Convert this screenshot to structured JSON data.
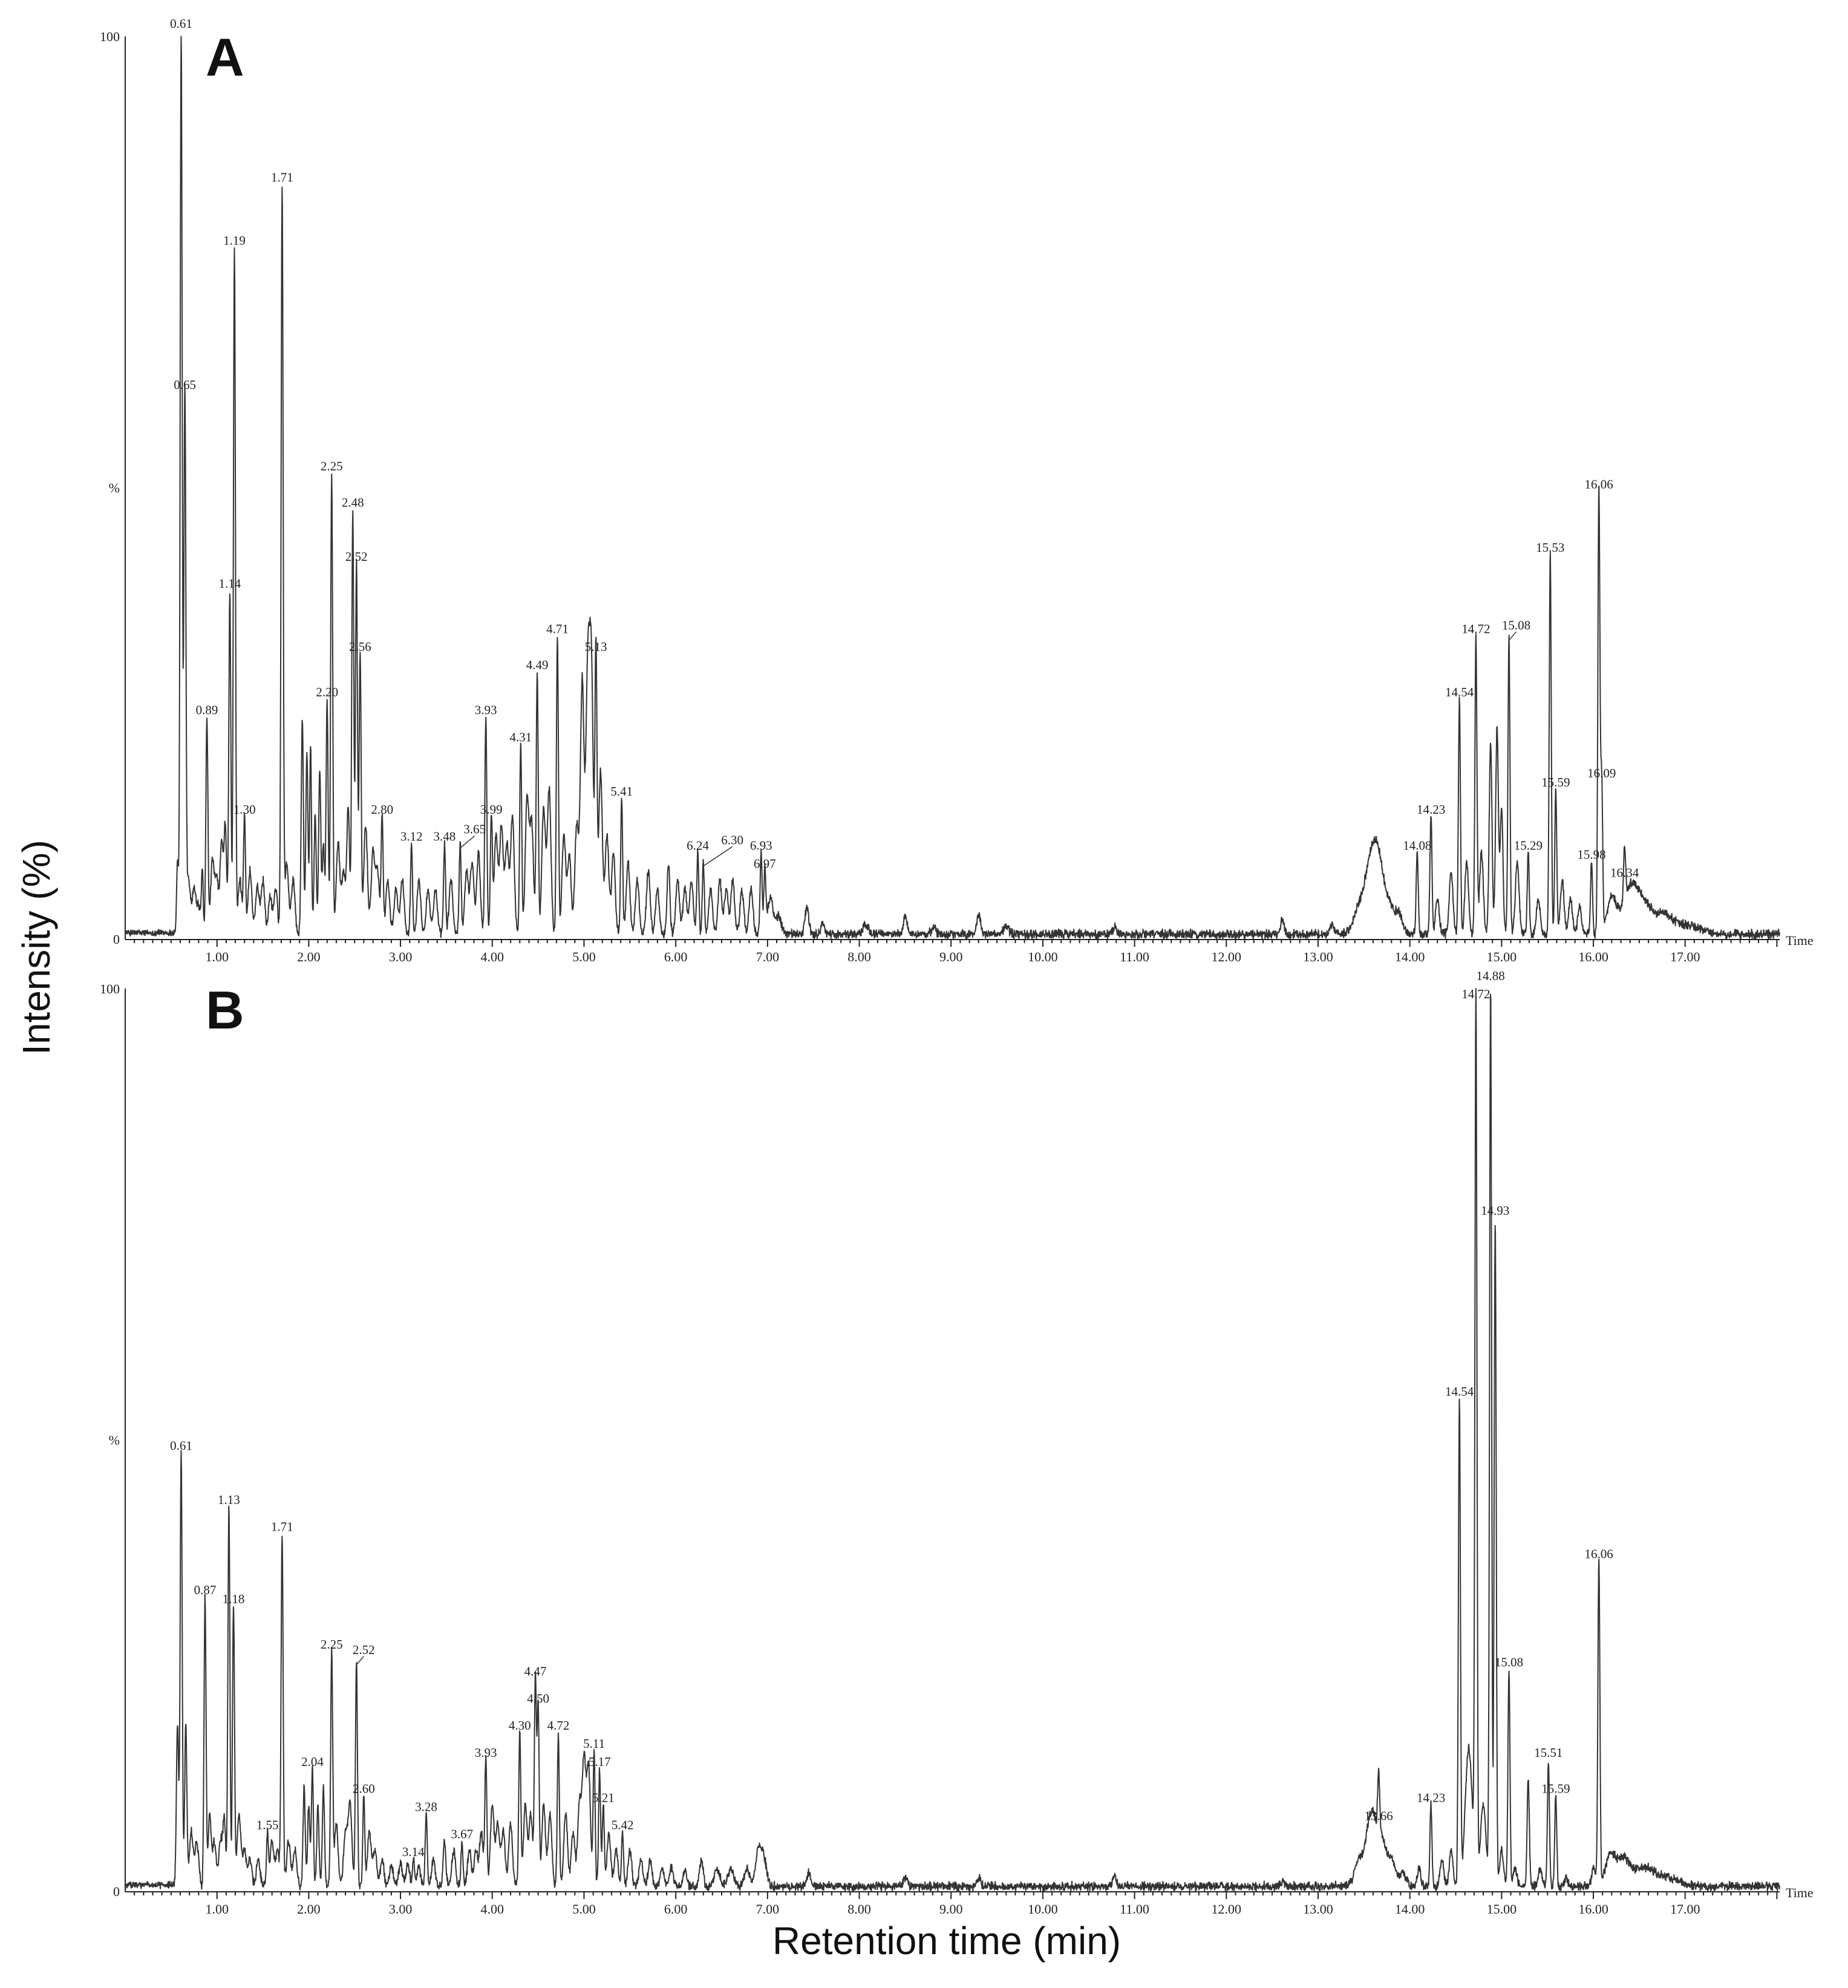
{
  "figure": {
    "ylabel": "Intensity (%)",
    "xlabel": "Retention time (min)"
  },
  "chart_data": [
    {
      "type": "line",
      "panel": "A",
      "axis_end_label": "Time",
      "y_tick_top": "100",
      "y_tick_mid": "%",
      "y_tick_bottom": "0",
      "xlim": [
        0,
        18.03
      ],
      "ylim": [
        0,
        100
      ],
      "x_ticks": [
        "1.00",
        "2.00",
        "3.00",
        "4.00",
        "5.00",
        "6.00",
        "7.00",
        "8.00",
        "9.00",
        "10.00",
        "11.00",
        "12.00",
        "13.00",
        "14.00",
        "15.00",
        "16.00",
        "17.00"
      ],
      "series": [
        {
          "peaks": [
            {
              "x": 0.61,
              "y": 100,
              "label": "0.61"
            },
            {
              "x": 0.65,
              "y": 60,
              "label": "0.65"
            },
            {
              "x": 0.89,
              "y": 24,
              "label": "0.89"
            },
            {
              "x": 1.14,
              "y": 38,
              "label": "1.14"
            },
            {
              "x": 1.19,
              "y": 76,
              "label": "1.19"
            },
            {
              "x": 1.3,
              "y": 13,
              "label": "1.30"
            },
            {
              "x": 1.71,
              "y": 83,
              "label": "1.71"
            },
            {
              "x": 2.2,
              "y": 26,
              "label": "2.20"
            },
            {
              "x": 2.25,
              "y": 51,
              "label": "2.25"
            },
            {
              "x": 2.48,
              "y": 47,
              "label": "2.48"
            },
            {
              "x": 2.52,
              "y": 41,
              "label": "2.52"
            },
            {
              "x": 2.56,
              "y": 31,
              "label": "2.56"
            },
            {
              "x": 2.8,
              "y": 13,
              "label": "2.80"
            },
            {
              "x": 3.12,
              "y": 10,
              "label": "3.12"
            },
            {
              "x": 3.48,
              "y": 10,
              "label": "3.48"
            },
            {
              "x": 3.65,
              "y": 10,
              "label": "3.65"
            },
            {
              "x": 3.93,
              "y": 24,
              "label": "3.93"
            },
            {
              "x": 3.99,
              "y": 13,
              "label": "3.99"
            },
            {
              "x": 4.31,
              "y": 21,
              "label": "4.31"
            },
            {
              "x": 4.49,
              "y": 29,
              "label": "4.49"
            },
            {
              "x": 4.71,
              "y": 33,
              "label": "4.71"
            },
            {
              "x": 5.13,
              "y": 31,
              "label": "5.13"
            },
            {
              "x": 5.41,
              "y": 15,
              "label": "5.41"
            },
            {
              "x": 6.24,
              "y": 9,
              "label": "6.24"
            },
            {
              "x": 6.3,
              "y": 8,
              "label": "6.30"
            },
            {
              "x": 6.93,
              "y": 9,
              "label": "6.93"
            },
            {
              "x": 6.97,
              "y": 7,
              "label": "6.97"
            },
            {
              "x": 14.08,
              "y": 9,
              "label": "14.08"
            },
            {
              "x": 14.23,
              "y": 13,
              "label": "14.23"
            },
            {
              "x": 14.54,
              "y": 26,
              "label": "14.54"
            },
            {
              "x": 14.72,
              "y": 33,
              "label": "14.72"
            },
            {
              "x": 15.08,
              "y": 33,
              "label": "15.08"
            },
            {
              "x": 15.29,
              "y": 9,
              "label": "15.29"
            },
            {
              "x": 15.53,
              "y": 42,
              "label": "15.53"
            },
            {
              "x": 15.59,
              "y": 16,
              "label": "15.59"
            },
            {
              "x": 15.98,
              "y": 8,
              "label": "15.98"
            },
            {
              "x": 16.06,
              "y": 49,
              "label": "16.06"
            },
            {
              "x": 16.09,
              "y": 17,
              "label": "16.09"
            },
            {
              "x": 16.34,
              "y": 6,
              "label": "16.34"
            }
          ]
        }
      ]
    },
    {
      "type": "line",
      "panel": "B",
      "axis_end_label": "Time",
      "y_tick_top": "100",
      "y_tick_mid": "%",
      "y_tick_bottom": "0",
      "xlim": [
        0,
        18.03
      ],
      "ylim": [
        0,
        100
      ],
      "x_ticks": [
        "1.00",
        "2.00",
        "3.00",
        "4.00",
        "5.00",
        "6.00",
        "7.00",
        "8.00",
        "9.00",
        "10.00",
        "11.00",
        "12.00",
        "13.00",
        "14.00",
        "15.00",
        "16.00",
        "17.00"
      ],
      "series": [
        {
          "peaks": [
            {
              "x": 0.61,
              "y": 48,
              "label": "0.61"
            },
            {
              "x": 0.87,
              "y": 32,
              "label": "0.87"
            },
            {
              "x": 1.13,
              "y": 42,
              "label": "1.13"
            },
            {
              "x": 1.18,
              "y": 31,
              "label": "1.18"
            },
            {
              "x": 1.55,
              "y": 6,
              "label": "1.55"
            },
            {
              "x": 1.71,
              "y": 39,
              "label": "1.71"
            },
            {
              "x": 2.04,
              "y": 13,
              "label": "2.04"
            },
            {
              "x": 2.25,
              "y": 26,
              "label": "2.25"
            },
            {
              "x": 2.52,
              "y": 25,
              "label": "2.52"
            },
            {
              "x": 2.6,
              "y": 10,
              "label": "2.60"
            },
            {
              "x": 3.14,
              "y": 3,
              "label": "3.14"
            },
            {
              "x": 3.28,
              "y": 8,
              "label": "3.28"
            },
            {
              "x": 3.67,
              "y": 5,
              "label": "3.67"
            },
            {
              "x": 3.93,
              "y": 14,
              "label": "3.93"
            },
            {
              "x": 4.3,
              "y": 17,
              "label": "4.30"
            },
            {
              "x": 4.47,
              "y": 23,
              "label": "4.47"
            },
            {
              "x": 4.5,
              "y": 20,
              "label": "4.50"
            },
            {
              "x": 4.72,
              "y": 17,
              "label": "4.72"
            },
            {
              "x": 5.11,
              "y": 15,
              "label": "5.11"
            },
            {
              "x": 5.17,
              "y": 13,
              "label": "5.17"
            },
            {
              "x": 5.21,
              "y": 9,
              "label": "5.21"
            },
            {
              "x": 5.42,
              "y": 6,
              "label": "5.42"
            },
            {
              "x": 13.66,
              "y": 7,
              "label": "13.66"
            },
            {
              "x": 14.23,
              "y": 9,
              "label": "14.23"
            },
            {
              "x": 14.54,
              "y": 54,
              "label": "14.54"
            },
            {
              "x": 14.72,
              "y": 98,
              "label": "14.72"
            },
            {
              "x": 14.88,
              "y": 100,
              "label": "14.88"
            },
            {
              "x": 14.93,
              "y": 74,
              "label": "14.93"
            },
            {
              "x": 15.08,
              "y": 24,
              "label": "15.08"
            },
            {
              "x": 15.51,
              "y": 14,
              "label": "15.51"
            },
            {
              "x": 15.59,
              "y": 10,
              "label": "15.59"
            },
            {
              "x": 16.06,
              "y": 36,
              "label": "16.06"
            }
          ]
        }
      ]
    }
  ]
}
